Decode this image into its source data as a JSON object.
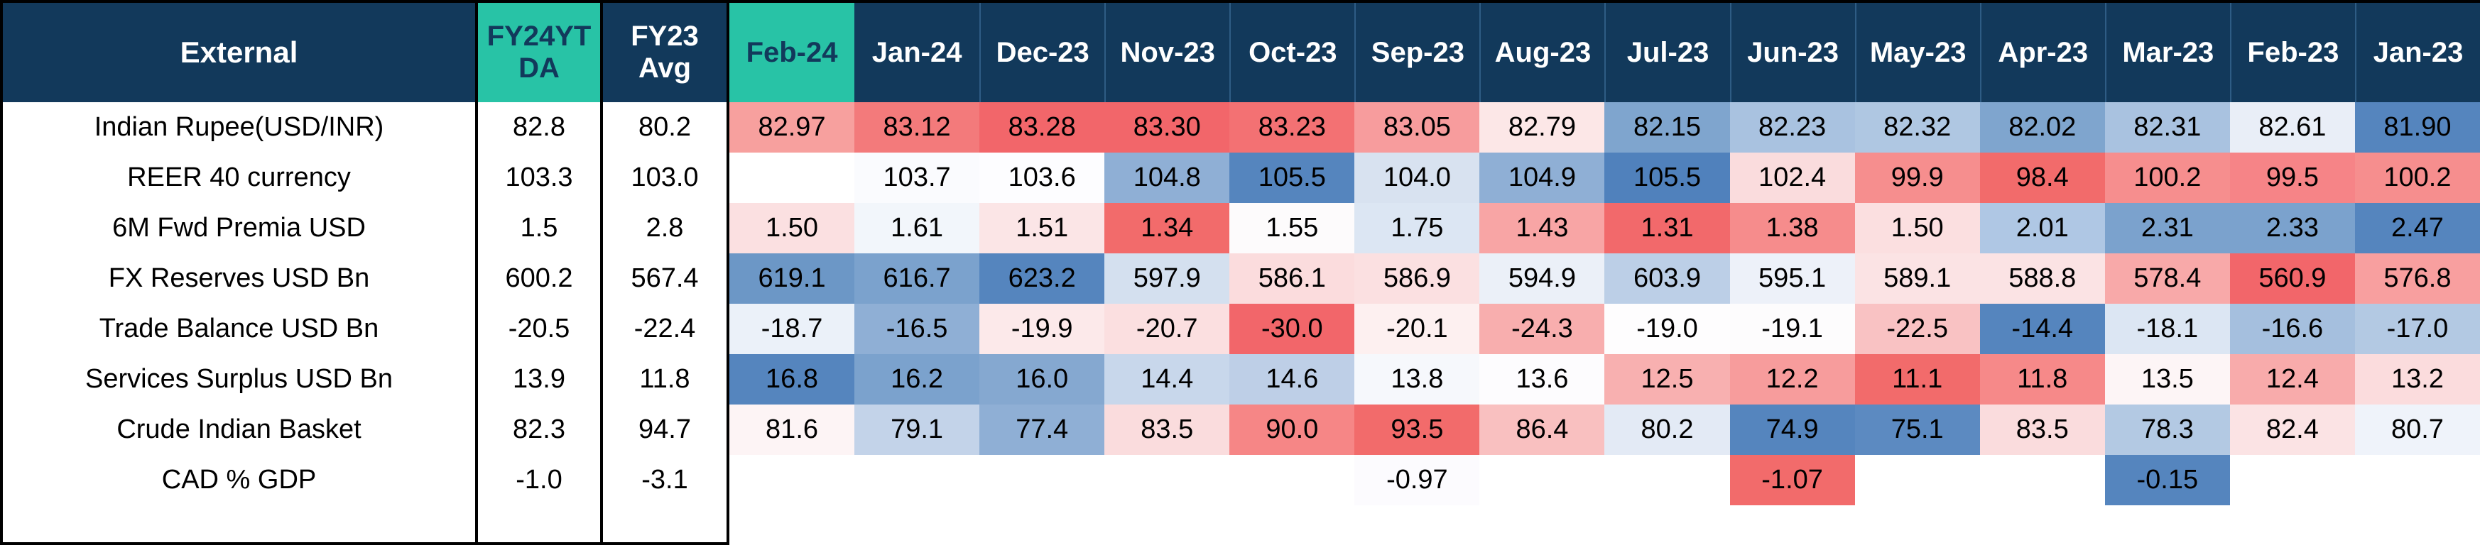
{
  "chart_data": {
    "type": "heatmap",
    "title": "External",
    "stat_columns": [
      "FY24YT DA",
      "FY23 Avg"
    ],
    "months": [
      "Feb-24",
      "Jan-24",
      "Dec-23",
      "Nov-23",
      "Oct-23",
      "Sep-23",
      "Aug-23",
      "Jul-23",
      "Jun-23",
      "May-23",
      "Apr-23",
      "Mar-23",
      "Feb-23",
      "Jan-23"
    ],
    "palette": {
      "header_navy": "#12395B",
      "header_teal": "#28C3A6",
      "cell_text": "#000000",
      "strong_red": "#F2666A",
      "strong_blue": "#5585BE"
    },
    "rows": [
      {
        "label": "Indian Rupee(USD/INR)",
        "fy24ytd": "82.8",
        "fy23_avg": "80.2",
        "values": [
          "82.97",
          "83.12",
          "83.28",
          "83.30",
          "83.23",
          "83.05",
          "82.79",
          "82.15",
          "82.23",
          "82.32",
          "82.02",
          "82.31",
          "82.61",
          "81.90"
        ],
        "colors": [
          "#F7A09E",
          "#F37A7B",
          "#F2666A",
          "#F2666A",
          "#F37173",
          "#F79C9D",
          "#FCE7E7",
          "#7FA5CE",
          "#A9C2E0",
          "#AFC7E2",
          "#7FA5CE",
          "#A9C2E0",
          "#E9EEF7",
          "#5585BE"
        ]
      },
      {
        "label": "REER 40 currency",
        "fy24ytd": "103.3",
        "fy23_avg": "103.0",
        "values": [
          "",
          "103.7",
          "103.6",
          "104.8",
          "105.5",
          "104.0",
          "104.9",
          "105.5",
          "102.4",
          "99.9",
          "98.4",
          "100.2",
          "99.5",
          "100.2"
        ],
        "colors": [
          "#FFFFFF",
          "#FAFBFE",
          "#FDFDFF",
          "#8FAFD5",
          "#5585BE",
          "#D8E2F0",
          "#8FAFD5",
          "#5081BC",
          "#FADCDD",
          "#F68E8E",
          "#F26B6B",
          "#F68E8E",
          "#F68487",
          "#F68E8E"
        ]
      },
      {
        "label": "6M Fwd Premia USD",
        "fy24ytd": "1.5",
        "fy23_avg": "2.8",
        "values": [
          "1.50",
          "1.61",
          "1.51",
          "1.34",
          "1.55",
          "1.75",
          "1.43",
          "1.31",
          "1.38",
          "1.50",
          "2.01",
          "2.31",
          "2.33",
          "2.47"
        ],
        "colors": [
          "#FBE0E1",
          "#F2F6FB",
          "#FBE5E6",
          "#F26B6B",
          "#FDFBFC",
          "#DCE6F3",
          "#F8A5A5",
          "#F2696B",
          "#F68C8C",
          "#FBDFE0",
          "#AFC7E4",
          "#7BA2CD",
          "#7BA2CD",
          "#5585BE"
        ]
      },
      {
        "label": "FX Reserves USD Bn",
        "fy24ytd": "600.2",
        "fy23_avg": "567.4",
        "values": [
          "619.1",
          "616.7",
          "623.2",
          "597.9",
          "586.1",
          "586.9",
          "594.9",
          "603.9",
          "595.1",
          "589.1",
          "588.8",
          "578.4",
          "560.9",
          "576.8"
        ],
        "colors": [
          "#6C97C6",
          "#7BA2CD",
          "#5585BE",
          "#D4E0EF",
          "#FBDCDD",
          "#FBE0E1",
          "#EBF0F8",
          "#BCCFE7",
          "#EDF1F9",
          "#FBE3E4",
          "#FBE3E4",
          "#F8A9A9",
          "#F2666A",
          "#F89F9F"
        ]
      },
      {
        "label": "Trade Balance USD Bn",
        "fy24ytd": "-20.5",
        "fy23_avg": "-22.4",
        "values": [
          "-18.7",
          "-16.5",
          "-19.9",
          "-20.7",
          "-30.0",
          "-20.1",
          "-24.3",
          "-19.0",
          "-19.1",
          "-22.5",
          "-14.4",
          "-18.1",
          "-16.6",
          "-17.0"
        ],
        "colors": [
          "#EBF1F9",
          "#8FAFD5",
          "#FCE9EA",
          "#FBDFE0",
          "#F2666A",
          "#FDF0F0",
          "#F8AEAE",
          "#FEFDFE",
          "#FDFCFD",
          "#F9C2C3",
          "#5585BE",
          "#DCE6F3",
          "#A5BFDE",
          "#B3C9E3"
        ]
      },
      {
        "label": "Services Surplus USD Bn",
        "fy24ytd": "13.9",
        "fy23_avg": "11.8",
        "values": [
          "16.8",
          "16.2",
          "16.0",
          "14.4",
          "14.6",
          "13.8",
          "13.6",
          "12.5",
          "12.2",
          "11.1",
          "11.8",
          "13.5",
          "12.4",
          "13.2"
        ],
        "colors": [
          "#5585BE",
          "#7BA2CD",
          "#85A8D0",
          "#C8D7EB",
          "#BECFE7",
          "#F6F8FC",
          "#FDFCFE",
          "#F8B0B0",
          "#F79C9C",
          "#F26B6B",
          "#F68989",
          "#FDF5F6",
          "#F8ABAB",
          "#FBDCDD"
        ]
      },
      {
        "label": "Crude Indian Basket",
        "fy24ytd": "82.3",
        "fy23_avg": "94.7",
        "values": [
          "81.6",
          "79.1",
          "77.4",
          "83.5",
          "90.0",
          "93.5",
          "86.4",
          "80.2",
          "74.9",
          "75.1",
          "83.5",
          "78.3",
          "82.4",
          "80.7"
        ],
        "colors": [
          "#FDF4F5",
          "#C3D3E9",
          "#8FAFD5",
          "#FADCDD",
          "#F68686",
          "#F26B6B",
          "#F9C0C0",
          "#E3EAF5",
          "#5585BE",
          "#5C8AC1",
          "#FADCDD",
          "#B3C9E3",
          "#FBE3E4",
          "#EFF3FA"
        ]
      },
      {
        "label": "CAD % GDP",
        "fy24ytd": "-1.0",
        "fy23_avg": "-3.1",
        "values": [
          "",
          "",
          "",
          "",
          "",
          "-0.97",
          "",
          "",
          "-1.07",
          "",
          "",
          "-0.15",
          "",
          ""
        ],
        "colors": [
          "#FFFFFF",
          "#FFFFFF",
          "#FFFFFF",
          "#FFFFFF",
          "#FFFFFF",
          "#FCFBFE",
          "#FFFFFF",
          "#FFFFFF",
          "#F26B6B",
          "#FFFFFF",
          "#FFFFFF",
          "#5585BE",
          "#FFFFFF",
          "#FFFFFF"
        ]
      }
    ]
  }
}
